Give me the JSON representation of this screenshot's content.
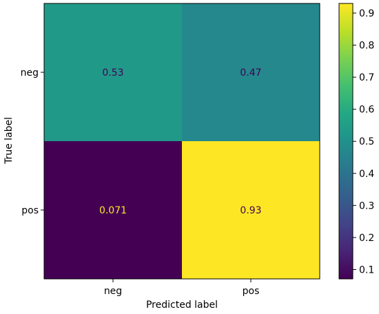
{
  "chart_data": {
    "type": "heatmap",
    "title": "",
    "xlabel": "Predicted label",
    "ylabel": "True label",
    "x_categories": [
      "neg",
      "pos"
    ],
    "y_categories": [
      "neg",
      "pos"
    ],
    "values": [
      [
        0.53,
        0.47
      ],
      [
        0.071,
        0.93
      ]
    ],
    "cell_labels": [
      [
        "0.53",
        "0.47"
      ],
      [
        "0.071",
        "0.93"
      ]
    ],
    "colormap": "viridis",
    "colorbar": {
      "range": [
        0.071,
        0.93
      ],
      "ticks": [
        0.1,
        0.2,
        0.3,
        0.4,
        0.5,
        0.6,
        0.7,
        0.8,
        0.9
      ],
      "tick_labels": [
        "0.1",
        "0.2",
        "0.3",
        "0.4",
        "0.5",
        "0.6",
        "0.7",
        "0.8",
        "0.9"
      ]
    },
    "grid": false
  }
}
